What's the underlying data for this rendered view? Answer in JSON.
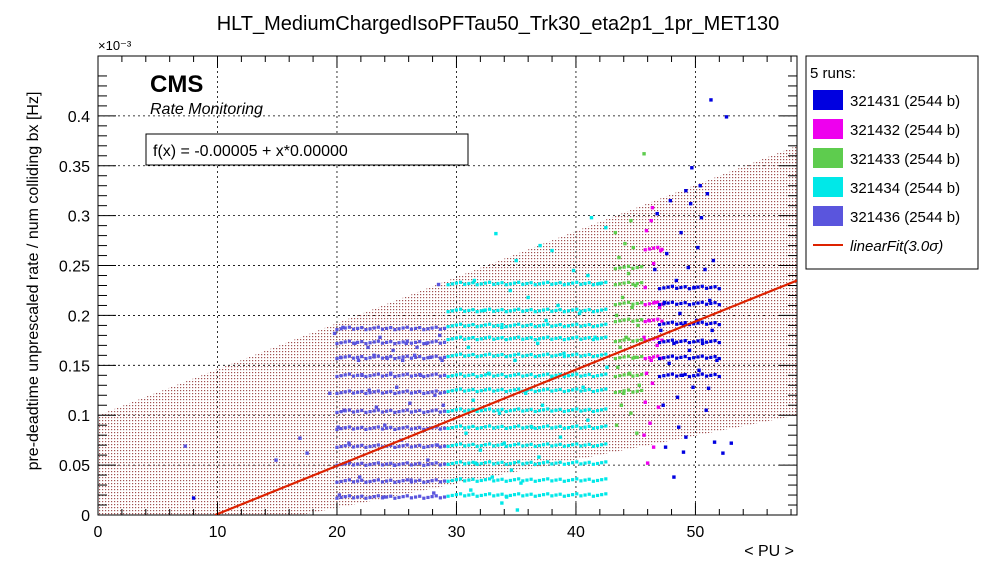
{
  "chart_data": {
    "type": "scatter",
    "title": "HLT_MediumChargedIsoPFTau50_Trk30_eta2p1_1pr_MET130",
    "xlabel": "< PU >",
    "ylabel": "pre-deadtime unprescaled rate / num colliding bx [Hz]",
    "y_multiplier": "×10⁻³",
    "xlim": [
      0,
      58.5
    ],
    "ylim": [
      0,
      0.00046
    ],
    "x_ticks": [
      "0",
      "10",
      "20",
      "30",
      "40",
      "50"
    ],
    "y_ticks": [
      "0",
      "0.05",
      "0.1",
      "0.15",
      "0.2",
      "0.25",
      "0.3",
      "0.35",
      "0.4"
    ],
    "grid": true,
    "cms_label": "CMS",
    "sublabel": "Rate Monitoring",
    "fit_box": "f(x) = -0.00005 + x*0.00000",
    "legend_title": "5 runs:",
    "legend_position": "right outside",
    "fit": {
      "name": "linearFit(3.0σ)",
      "color": "#dd2200",
      "points": [
        [
          9.8,
          0.0
        ],
        [
          58.5,
          0.000235
        ]
      ],
      "band_upper": [
        [
          0,
          0.0001
        ],
        [
          58.5,
          0.00037
        ]
      ],
      "band_lower": [
        [
          0,
          0.0
        ],
        [
          17,
          0.0
        ],
        [
          58.5,
          0.0001
        ]
      ],
      "band_color": "#a05050"
    },
    "series": [
      {
        "name": "321431 (2544 b)",
        "color": "#0000e0",
        "points": [
          [
            51.3,
            0.000416
          ],
          [
            52.6,
            0.000399
          ],
          [
            49.7,
            0.000348
          ],
          [
            50.4,
            0.00033
          ],
          [
            49.2,
            0.000325
          ],
          [
            51.0,
            0.000322
          ],
          [
            47.9,
            0.000315
          ],
          [
            49.6,
            0.000312
          ],
          [
            46.8,
            0.000302
          ],
          [
            50.5,
            0.000298
          ],
          [
            48.8,
            0.000283
          ],
          [
            50.2,
            0.000268
          ],
          [
            47.6,
            0.000262
          ],
          [
            51.5,
            0.000255
          ],
          [
            49.4,
            0.000248
          ],
          [
            46.6,
            0.000246
          ],
          [
            50.8,
            0.000246
          ],
          [
            48.4,
            0.000235
          ],
          [
            49.9,
            0.000228
          ],
          [
            51.2,
            0.000215
          ],
          [
            47.4,
            0.000213
          ],
          [
            48.7,
            0.000202
          ],
          [
            50.1,
            0.000195
          ],
          [
            49.0,
            0.00019
          ],
          [
            47.1,
            0.000185
          ],
          [
            51.4,
            0.000185
          ],
          [
            48.2,
            0.000172
          ],
          [
            50.6,
            0.000172
          ],
          [
            49.5,
            0.000165
          ],
          [
            47.8,
            0.000152
          ],
          [
            51.8,
            0.000155
          ],
          [
            50.3,
            0.000145
          ],
          [
            48.9,
            0.00014
          ],
          [
            49.8,
            0.000128
          ],
          [
            51.1,
            0.000127
          ],
          [
            48.5,
            0.000118
          ],
          [
            47.3,
            0.00011
          ],
          [
            50.9,
            0.000105
          ],
          [
            48.6,
            8.8e-05
          ],
          [
            49.2,
            7.8e-05
          ],
          [
            51.6,
            7.3e-05
          ],
          [
            53.0,
            7.2e-05
          ],
          [
            49.0,
            6.3e-05
          ],
          [
            47.5,
            6.8e-05
          ],
          [
            52.3,
            6.2e-05
          ],
          [
            48.2,
            3.8e-05
          ],
          [
            8.0,
            1.7e-05
          ]
        ]
      },
      {
        "name": "321432 (2544 b)",
        "color": "#ee00ee",
        "points": [
          [
            46.4,
            0.000308
          ],
          [
            46.3,
            0.000295
          ],
          [
            45.9,
            0.000285
          ],
          [
            47.1,
            0.000265
          ],
          [
            46.5,
            0.000252
          ],
          [
            45.8,
            0.000228
          ],
          [
            46.6,
            0.000213
          ],
          [
            47.0,
            0.000208
          ],
          [
            46.1,
            0.000195
          ],
          [
            45.7,
            0.000178
          ],
          [
            46.8,
            0.00017
          ],
          [
            46.3,
            0.000155
          ],
          [
            45.9,
            0.000142
          ],
          [
            46.4,
            0.000132
          ],
          [
            45.8,
            0.000113
          ],
          [
            46.9,
            0.000108
          ],
          [
            46.2,
            9.2e-05
          ],
          [
            45.7,
            8e-05
          ],
          [
            46.5,
            6.8e-05
          ],
          [
            46.0,
            5.2e-05
          ]
        ]
      },
      {
        "name": "321433 (2544 b)",
        "color": "#5ecc4e",
        "points": [
          [
            45.7,
            0.000362
          ],
          [
            44.6,
            0.000295
          ],
          [
            43.3,
            0.000283
          ],
          [
            44.1,
            0.000272
          ],
          [
            44.8,
            0.000268
          ],
          [
            43.6,
            0.000258
          ],
          [
            44.4,
            0.000242
          ],
          [
            45.0,
            0.00023
          ],
          [
            43.9,
            0.000218
          ],
          [
            44.7,
            0.000208
          ],
          [
            43.4,
            0.0002
          ],
          [
            45.2,
            0.00019
          ],
          [
            44.2,
            0.000178
          ],
          [
            43.7,
            0.000168
          ],
          [
            44.9,
            0.000158
          ],
          [
            43.5,
            0.000148
          ],
          [
            44.5,
            0.000142
          ],
          [
            45.3,
            0.00013
          ],
          [
            44.0,
            0.000122
          ],
          [
            43.8,
            0.00011
          ],
          [
            44.6,
            0.000102
          ],
          [
            43.4,
            9e-05
          ],
          [
            45.1,
            8.2e-05
          ]
        ]
      },
      {
        "name": "321434 (2544 b)",
        "color": "#00e8e8",
        "points": [
          [
            33.3,
            0.000282
          ],
          [
            41.3,
            0.000298
          ],
          [
            42.5,
            0.000288
          ],
          [
            37.0,
            0.00027
          ],
          [
            38.0,
            0.000265
          ],
          [
            35.0,
            0.000255
          ],
          [
            39.8,
            0.000245
          ],
          [
            41.0,
            0.00024
          ],
          [
            42.0,
            0.000232
          ],
          [
            31.5,
            0.000235
          ],
          [
            34.5,
            0.000225
          ],
          [
            36.0,
            0.000218
          ],
          [
            38.5,
            0.00021
          ],
          [
            40.3,
            0.000202
          ],
          [
            32.3,
            0.000205
          ],
          [
            37.5,
            0.000195
          ],
          [
            33.8,
            0.000188
          ],
          [
            41.6,
            0.000178
          ],
          [
            36.8,
            0.000172
          ],
          [
            31.0,
            0.000168
          ],
          [
            39.0,
            0.000162
          ],
          [
            34.9,
            0.000155
          ],
          [
            42.6,
            0.000148
          ],
          [
            32.7,
            0.000142
          ],
          [
            38.0,
            0.000138
          ],
          [
            40.6,
            0.000128
          ],
          [
            35.8,
            0.000122
          ],
          [
            31.4,
            0.000115
          ],
          [
            37.2,
            0.00011
          ],
          [
            33.6,
            0.000102
          ],
          [
            41.0,
            9.5e-05
          ],
          [
            36.3,
            8.8e-05
          ],
          [
            30.8,
            8.2e-05
          ],
          [
            38.7,
            7.8e-05
          ],
          [
            34.0,
            7.2e-05
          ],
          [
            32.0,
            6.5e-05
          ],
          [
            36.9,
            5.8e-05
          ],
          [
            31.6,
            5.2e-05
          ],
          [
            34.6,
            4.5e-05
          ],
          [
            33.0,
            3.8e-05
          ],
          [
            35.4,
            3.2e-05
          ],
          [
            31.2,
            2.5e-05
          ],
          [
            34.2,
            1.8e-05
          ],
          [
            33.8,
            1.2e-05
          ],
          [
            35.1,
            5e-06
          ]
        ]
      },
      {
        "name": "321436 (2544 b)",
        "color": "#5a55dd",
        "points": [
          [
            19.8,
            0.000182
          ],
          [
            20.5,
            0.000188
          ],
          [
            21.5,
            0.000172
          ],
          [
            22.6,
            0.000168
          ],
          [
            23.6,
            0.000178
          ],
          [
            24.7,
            0.000165
          ],
          [
            25.8,
            0.000172
          ],
          [
            26.7,
            0.000168
          ],
          [
            27.5,
            0.000172
          ],
          [
            28.6,
            0.00018
          ],
          [
            20.3,
            0.000158
          ],
          [
            21.8,
            0.000155
          ],
          [
            23.1,
            0.00016
          ],
          [
            24.2,
            0.000157
          ],
          [
            25.5,
            0.000155
          ],
          [
            26.5,
            0.00016
          ],
          [
            27.8,
            0.000158
          ],
          [
            28.8,
            0.000155
          ],
          [
            22.1,
            0.00014
          ],
          [
            24.5,
            0.000142
          ],
          [
            27.0,
            0.00014
          ],
          [
            19.4,
            0.000122
          ],
          [
            22.7,
            0.000125
          ],
          [
            25.0,
            0.000128
          ],
          [
            28.2,
            0.00012
          ],
          [
            20.6,
            0.000105
          ],
          [
            23.3,
            0.000108
          ],
          [
            26.1,
            0.000112
          ],
          [
            28.9,
            0.00011
          ],
          [
            20.1,
            8.8e-05
          ],
          [
            24.0,
            9e-05
          ],
          [
            27.3,
            8.5e-05
          ],
          [
            21.0,
            7.2e-05
          ],
          [
            25.4,
            7.5e-05
          ],
          [
            28.4,
            7e-05
          ],
          [
            20.7,
            5.2e-05
          ],
          [
            24.8,
            5e-05
          ],
          [
            27.6,
            5.5e-05
          ],
          [
            21.9,
            3.8e-05
          ],
          [
            26.2,
            3.5e-05
          ],
          [
            20.2,
            2e-05
          ],
          [
            23.9,
            1.8e-05
          ],
          [
            28.1,
            2.2e-05
          ],
          [
            14.9,
            5.5e-05
          ],
          [
            16.9,
            7.7e-05
          ],
          [
            17.5,
            6.2e-05
          ],
          [
            7.3,
            6.9e-05
          ],
          [
            28.5,
            0.000231
          ]
        ]
      }
    ],
    "bands": [
      {
        "series": 4,
        "x0": 20.0,
        "x1": 29.0,
        "ys": [
          0.000187,
          0.000173,
          0.000158,
          0.00014,
          0.000123,
          0.000104,
          8.7e-05,
          6.9e-05,
          5.1e-05,
          3.4e-05,
          1.8e-05
        ]
      },
      {
        "series": 3,
        "x0": 29.3,
        "x1": 42.5,
        "ys": [
          0.000232,
          0.000205,
          0.00019,
          0.000177,
          0.00016,
          0.00014,
          0.000125,
          0.000105,
          8.8e-05,
          7e-05,
          5.2e-05,
          3.5e-05,
          2e-05
        ]
      },
      {
        "series": 2,
        "x0": 43.3,
        "x1": 45.5,
        "ys": [
          0.000248,
          0.000232,
          0.000212,
          0.000195,
          0.000175,
          0.000158,
          0.00014,
          0.000124
        ]
      },
      {
        "series": 1,
        "x0": 45.8,
        "x1": 47.2,
        "ys": [
          0.000267,
          0.000212,
          0.000195,
          0.000176,
          0.000158
        ]
      },
      {
        "series": 0,
        "x0": 47.0,
        "x1": 52.0,
        "ys": [
          0.000228,
          0.000212,
          0.000192,
          0.000174,
          0.000158,
          0.00014
        ]
      }
    ]
  }
}
